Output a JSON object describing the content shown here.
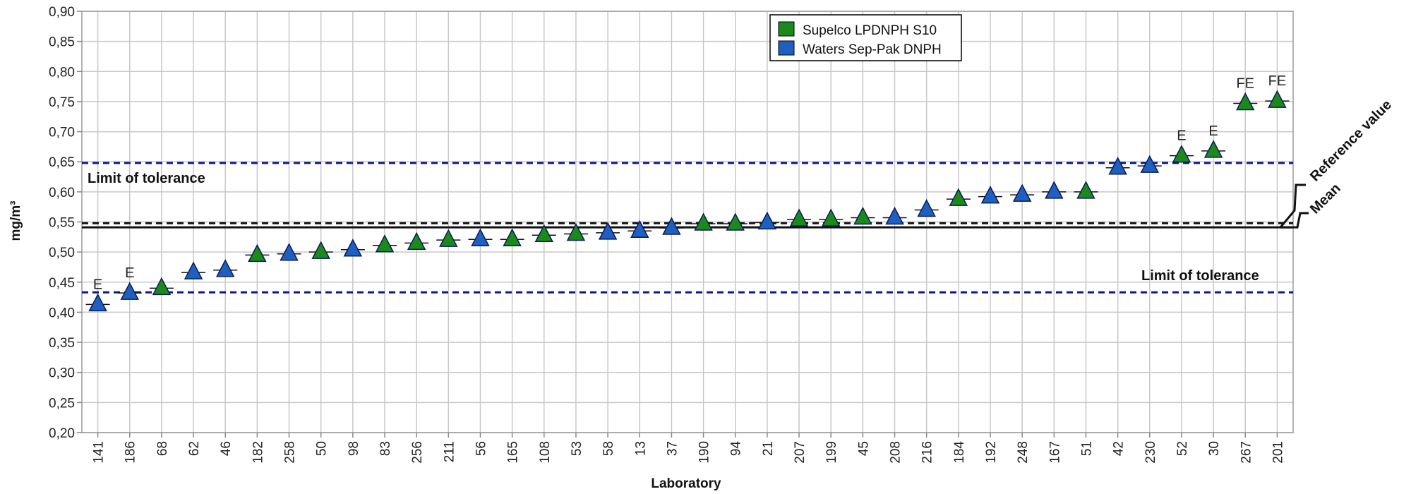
{
  "chart_data": {
    "type": "scatter",
    "xlabel": "Laboratory",
    "ylabel": "mg/m³",
    "ylim": [
      0.2,
      0.9
    ],
    "ytick_step": 0.05,
    "grid": true,
    "legend_position": "top-center",
    "categories": [
      "141",
      "186",
      "68",
      "62",
      "46",
      "182",
      "258",
      "50",
      "98",
      "83",
      "256",
      "211",
      "56",
      "165",
      "108",
      "53",
      "58",
      "13",
      "37",
      "190",
      "94",
      "21",
      "207",
      "199",
      "45",
      "208",
      "216",
      "184",
      "192",
      "248",
      "167",
      "51",
      "42",
      "230",
      "52",
      "30",
      "267",
      "201"
    ],
    "values": [
      0.413,
      0.432,
      0.44,
      0.466,
      0.47,
      0.495,
      0.497,
      0.5,
      0.504,
      0.511,
      0.515,
      0.52,
      0.521,
      0.521,
      0.528,
      0.53,
      0.532,
      0.535,
      0.54,
      0.547,
      0.547,
      0.549,
      0.554,
      0.554,
      0.557,
      0.557,
      0.57,
      0.588,
      0.592,
      0.595,
      0.6,
      0.6,
      0.64,
      0.643,
      0.66,
      0.668,
      0.747,
      0.751
    ],
    "cartridge": [
      "Waters",
      "Waters",
      "Supelco",
      "Waters",
      "Waters",
      "Supelco",
      "Waters",
      "Supelco",
      "Waters",
      "Supelco",
      "Supelco",
      "Supelco",
      "Waters",
      "Supelco",
      "Supelco",
      "Supelco",
      "Waters",
      "Waters",
      "Waters",
      "Supelco",
      "Supelco",
      "Waters",
      "Supelco",
      "Supelco",
      "Supelco",
      "Waters",
      "Waters",
      "Supelco",
      "Waters",
      "Waters",
      "Waters",
      "Supelco",
      "Waters",
      "Waters",
      "Supelco",
      "Supelco",
      "Supelco",
      "Supelco"
    ],
    "flags": [
      "E",
      "E",
      "",
      "",
      "",
      "",
      "",
      "",
      "",
      "",
      "",
      "",
      "",
      "",
      "",
      "",
      "",
      "",
      "",
      "",
      "",
      "",
      "",
      "",
      "",
      "",
      "",
      "",
      "",
      "",
      "",
      "",
      "",
      "",
      "E",
      "E",
      "FE",
      "FE"
    ],
    "series": [
      {
        "name": "Supelco LPDNPH S10",
        "key": "Supelco",
        "color": "#1b8a1b"
      },
      {
        "name": "Waters Sep-Pak DNPH",
        "key": "Waters",
        "color": "#1f5fbf"
      }
    ],
    "lines": {
      "reference_value": 0.548,
      "mean": 0.541,
      "tolerance_upper": 0.648,
      "tolerance_lower": 0.433
    },
    "annotations": {
      "limit_upper": "Limit of tolerance",
      "limit_lower": "Limit of tolerance",
      "reference": "Reference value",
      "mean": "Mean"
    }
  }
}
